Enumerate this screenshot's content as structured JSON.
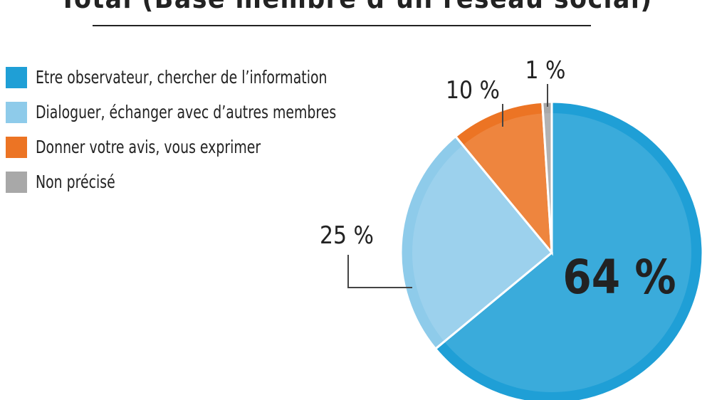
{
  "chart_data": {
    "type": "pie",
    "title": "Total  (Base membre d’un réseau social)",
    "slices": [
      {
        "label": "Etre observateur, chercher de l’information",
        "value": 64,
        "value_label": "64 %",
        "color": "#1f9fd6"
      },
      {
        "label": "Dialoguer, échanger avec d’autres membres",
        "value": 25,
        "value_label": "25 %",
        "color": "#8ecbea"
      },
      {
        "label": "Donner votre avis, vous exprimer",
        "value": 10,
        "value_label": "10 %",
        "color": "#ec7424"
      },
      {
        "label": "Non précisé",
        "value": 1,
        "value_label": "1 %",
        "color": "#a8a8a8"
      }
    ],
    "legend_position": "left"
  }
}
